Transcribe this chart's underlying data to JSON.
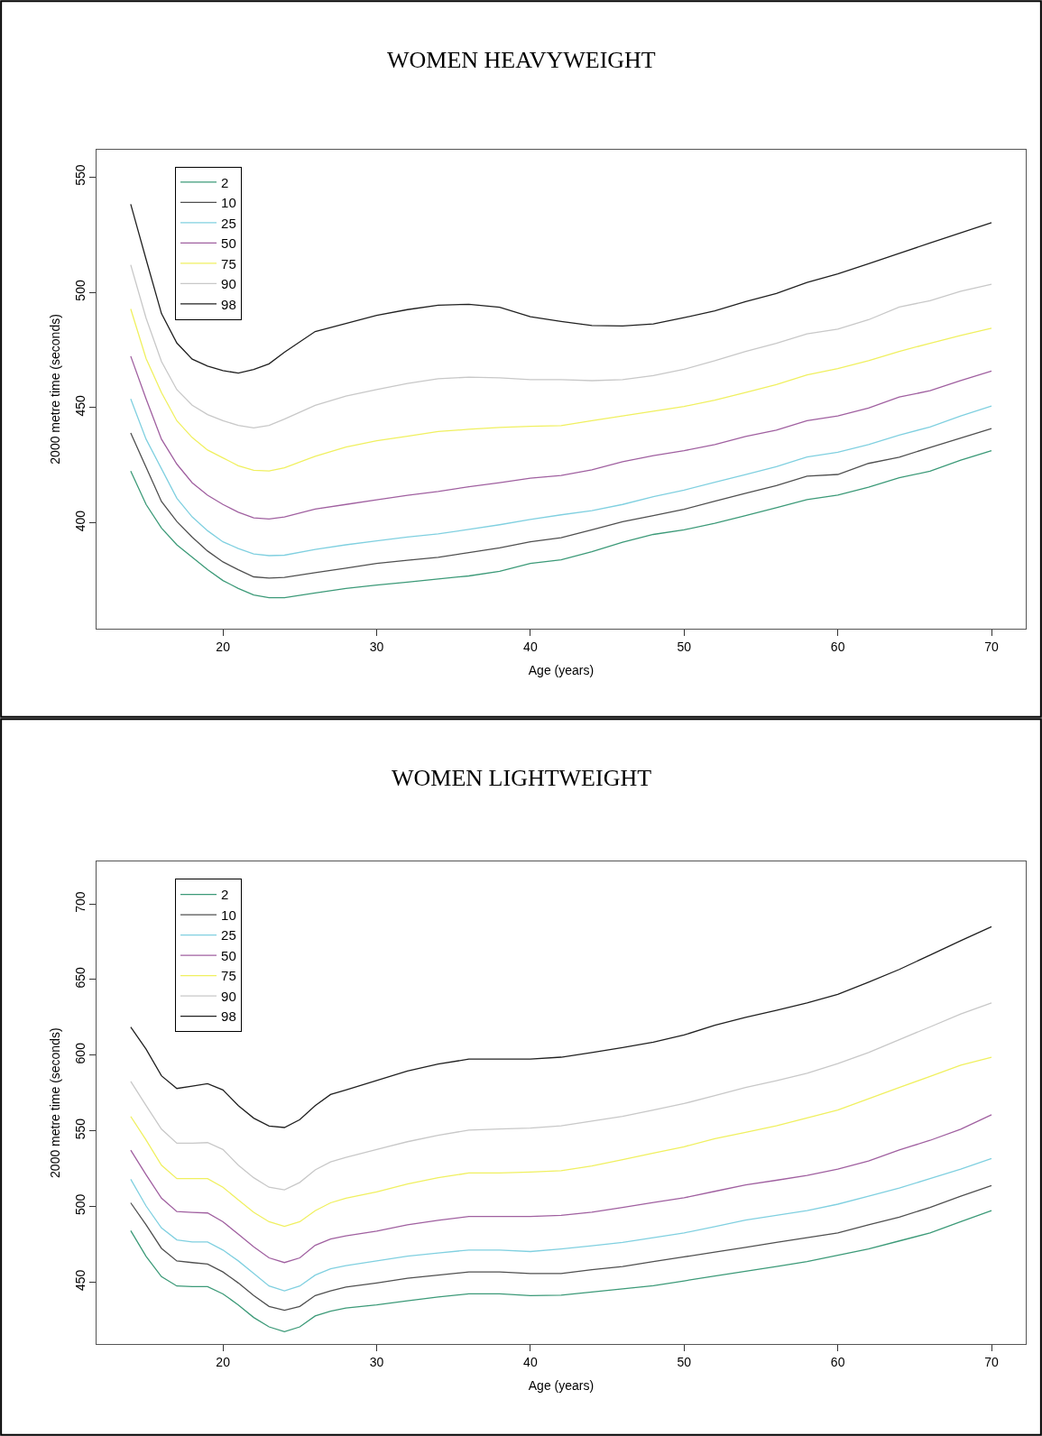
{
  "chart_data": [
    {
      "type": "line",
      "title": "WOMEN HEAVYWEIGHT",
      "xlabel": "Age (years)",
      "ylabel": "2000 metre time (seconds)",
      "xlim": [
        11.8,
        72.2
      ],
      "xticks": [
        20,
        30,
        40,
        50,
        60,
        70
      ],
      "ylim": [
        354,
        562
      ],
      "yticks": [
        400,
        450,
        500,
        550
      ],
      "grid": false,
      "legend": "top left",
      "line_style": "solid",
      "x": [
        14,
        15,
        16,
        17,
        18,
        19,
        20,
        21,
        22,
        23,
        24,
        26,
        28,
        30,
        32,
        34,
        36,
        38,
        40,
        42,
        44,
        46,
        48,
        50,
        52,
        54,
        56,
        58,
        60,
        62,
        64,
        66,
        68,
        70
      ],
      "series": [
        {
          "name": "2",
          "color": "#3c9a78",
          "values": [
            422.5,
            408,
            397.8,
            390.5,
            385.1,
            379.7,
            375,
            371.6,
            368.7,
            367.6,
            367.6,
            369.6,
            371.6,
            373,
            374.3,
            375.7,
            377,
            379,
            382.4,
            384,
            387.5,
            391.6,
            395,
            397,
            399.8,
            403.2,
            406.6,
            410.1,
            412.1,
            415.5,
            419.6,
            422.4,
            427.2,
            431.3
          ]
        },
        {
          "name": "10",
          "color": "#505050",
          "values": [
            439,
            424.1,
            409.3,
            400.6,
            393.8,
            387.8,
            383.1,
            379.7,
            376.6,
            376.1,
            376.4,
            378.4,
            380.4,
            382.4,
            383.8,
            385.1,
            387.1,
            389.2,
            391.8,
            393.6,
            397,
            400.5,
            403.2,
            405.9,
            409.4,
            412.8,
            416.2,
            420.3,
            421,
            425.8,
            428.5,
            432.7,
            436.8,
            440.9
          ]
        },
        {
          "name": "25",
          "color": "#80d0e0",
          "values": [
            453.8,
            436.3,
            423.5,
            410.7,
            402.6,
            396.6,
            391.8,
            388.9,
            386.5,
            385.8,
            386,
            388.5,
            390.5,
            392.2,
            393.9,
            395.2,
            397.2,
            399.2,
            401.5,
            403.5,
            405.3,
            408,
            411.4,
            414.2,
            417.6,
            421,
            424.4,
            428.6,
            430.6,
            434,
            438.1,
            441.6,
            446.4,
            450.7
          ]
        },
        {
          "name": "50",
          "color": "#a060a0",
          "values": [
            472.3,
            453.8,
            436.3,
            425.5,
            417.4,
            412,
            408,
            404.6,
            402.2,
            401.7,
            402.6,
            406,
            408,
            410,
            412,
            413.6,
            415.7,
            417.4,
            419.4,
            420.6,
            423,
            426.5,
            429.2,
            431.3,
            434,
            437.5,
            440.2,
            444.3,
            446.4,
            449.8,
            454.6,
            457.3,
            461.7,
            465.8
          ]
        },
        {
          "name": "75",
          "color": "#f0f060",
          "values": [
            492.8,
            471.3,
            456.5,
            444.3,
            437,
            431.6,
            428.2,
            424.8,
            422.8,
            422.5,
            423.9,
            428.9,
            432.9,
            435.6,
            437.6,
            439.6,
            440.6,
            441.4,
            441.9,
            442.2,
            444.3,
            446.4,
            448.4,
            450.5,
            453.2,
            456.6,
            460,
            464.2,
            466.9,
            470.3,
            474.4,
            477.9,
            481.3,
            484.4
          ]
        },
        {
          "name": "90",
          "color": "#c8c8c8",
          "values": [
            511.9,
            488.8,
            470,
            457.8,
            451,
            447,
            444.3,
            442.3,
            441.2,
            442.3,
            445,
            451,
            455,
            457.8,
            460.5,
            462.5,
            463.2,
            462.9,
            462.1,
            462.1,
            461.7,
            462.1,
            463.9,
            466.6,
            470.3,
            474.4,
            477.9,
            482,
            484,
            488.1,
            493.6,
            496.4,
            500.5,
            503.5
          ]
        },
        {
          "name": "98",
          "color": "#202020",
          "values": [
            538.2,
            514.3,
            490.8,
            478,
            471,
            468,
            466,
            465,
            466.5,
            469,
            474,
            483,
            486.5,
            490,
            492.5,
            494.4,
            494.8,
            493.5,
            489.4,
            487.4,
            485.6,
            485.4,
            486.3,
            489,
            492,
            496,
            499.5,
            504.3,
            508,
            512.4,
            516.9,
            521.4,
            525.8,
            530.2
          ]
        }
      ]
    },
    {
      "type": "line",
      "title": "WOMEN LIGHTWEIGHT",
      "xlabel": "Age (years)",
      "ylabel": "2000 metre time (seconds)",
      "xlim": [
        11.8,
        72.2
      ],
      "xticks": [
        20,
        30,
        40,
        50,
        60,
        70
      ],
      "ylim": [
        409,
        728
      ],
      "yticks": [
        450,
        500,
        550,
        600,
        650,
        700
      ],
      "grid": false,
      "legend": "top left",
      "line_style": "solid",
      "x": [
        14,
        15,
        16,
        17,
        18,
        19,
        20,
        21,
        22,
        23,
        24,
        25,
        26,
        27,
        28,
        30,
        32,
        34,
        36,
        38,
        40,
        42,
        44,
        46,
        48,
        50,
        52,
        54,
        56,
        58,
        60,
        62,
        64,
        66,
        68,
        70
      ],
      "series": [
        {
          "name": "2",
          "color": "#3c9a78",
          "values": [
            484,
            467,
            453.6,
            447.4,
            447,
            447,
            442.2,
            434.9,
            426.6,
            420.4,
            417.2,
            420.4,
            427.6,
            430.8,
            432.8,
            434.9,
            437.6,
            440.1,
            442.2,
            442.2,
            441.1,
            441.3,
            443.4,
            445.5,
            447.6,
            450.8,
            454,
            457.2,
            460.3,
            463.5,
            467.7,
            471.9,
            477.2,
            482.5,
            489.9,
            497.3
          ]
        },
        {
          "name": "10",
          "color": "#505050",
          "values": [
            502.4,
            487.8,
            472.3,
            464,
            462.9,
            461.9,
            456.7,
            449.4,
            441.1,
            433.9,
            431.4,
            433.9,
            441.1,
            444.2,
            446.7,
            449.4,
            452.5,
            454.6,
            456.7,
            456.7,
            455.7,
            455.7,
            458.2,
            460.3,
            463.5,
            466.7,
            469.8,
            473,
            476.2,
            479.3,
            482.5,
            487.8,
            493,
            499.4,
            506.8,
            513.8
          ]
        },
        {
          "name": "25",
          "color": "#80d0e0",
          "values": [
            518,
            500.3,
            485.8,
            477.9,
            476.5,
            476.5,
            471.2,
            464,
            455.7,
            447.4,
            444.2,
            447.4,
            454.6,
            458.8,
            460.9,
            464,
            467.1,
            469.2,
            471.2,
            471.2,
            470.2,
            471.9,
            474,
            476.2,
            479.3,
            482.5,
            486.7,
            491,
            494.1,
            497.3,
            501.5,
            506.8,
            512.1,
            518.4,
            524.7,
            531.7
          ]
        },
        {
          "name": "50",
          "color": "#a060a0",
          "values": [
            537.2,
            521,
            505.5,
            496.6,
            496.1,
            495.7,
            489.9,
            481.6,
            473.3,
            466,
            462.9,
            466,
            474.3,
            478.5,
            480.6,
            483.7,
            487.8,
            490.9,
            493.4,
            493.4,
            493.4,
            494.1,
            496.2,
            499.4,
            502.6,
            505.7,
            510,
            514.2,
            517.3,
            520.5,
            524.7,
            530,
            537.4,
            543.7,
            551.1,
            560.6
          ]
        },
        {
          "name": "75",
          "color": "#f0f060",
          "values": [
            559.5,
            543.9,
            527.3,
            518.4,
            518.4,
            518.4,
            512.7,
            504.4,
            496.1,
            489.9,
            486.8,
            489.9,
            497.2,
            502.4,
            505.5,
            509.6,
            514.8,
            519,
            522.1,
            522.1,
            522.7,
            523.7,
            526.8,
            531,
            535.3,
            539.5,
            544.8,
            549,
            553.3,
            558.5,
            563.8,
            571.2,
            578.6,
            586,
            593.4,
            598.7
          ]
        },
        {
          "name": "90",
          "color": "#c8c8c8",
          "values": [
            582.7,
            566.7,
            551.1,
            541.8,
            541.8,
            542.2,
            537.7,
            527.3,
            519,
            512.7,
            511,
            515.9,
            524.2,
            529.4,
            532.5,
            537.7,
            542.8,
            547,
            550.5,
            551.2,
            551.8,
            553.3,
            556.4,
            559.6,
            563.8,
            568,
            573.3,
            578.6,
            583.2,
            588.1,
            594.4,
            601.8,
            610.3,
            618.7,
            627.2,
            634.6
          ]
        },
        {
          "name": "98",
          "color": "#202020",
          "values": [
            618.6,
            604,
            586.4,
            578,
            579.6,
            581.2,
            577,
            566.7,
            558.4,
            553.2,
            552.2,
            557.4,
            566.7,
            574,
            577,
            583.3,
            589.6,
            594.1,
            597.4,
            597.4,
            597.4,
            598.7,
            601.8,
            605,
            608.6,
            613.4,
            619.8,
            625,
            629.7,
            634.6,
            640.3,
            648.3,
            656.7,
            666.2,
            675.7,
            685
          ]
        }
      ]
    }
  ]
}
